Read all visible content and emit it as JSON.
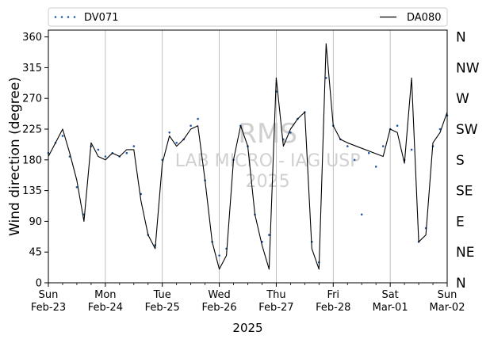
{
  "chart_data": {
    "type": "scatter",
    "ylabel": "Wind direction (degree)",
    "xlabel": "2025",
    "ylim": [
      0,
      370
    ],
    "yticks": [
      0,
      45,
      90,
      135,
      180,
      225,
      270,
      315,
      360
    ],
    "compass_labels": [
      {
        "value": 0,
        "label": "N"
      },
      {
        "value": 45,
        "label": "NE"
      },
      {
        "value": 90,
        "label": "E"
      },
      {
        "value": 135,
        "label": "SE"
      },
      {
        "value": 180,
        "label": "S"
      },
      {
        "value": 225,
        "label": "SW"
      },
      {
        "value": 270,
        "label": "W"
      },
      {
        "value": 315,
        "label": "NW"
      },
      {
        "value": 360,
        "label": "N"
      }
    ],
    "xlim_days": [
      "2025-02-23",
      "2025-03-02"
    ],
    "xticks": [
      {
        "day": "Sun",
        "date": "Feb-23"
      },
      {
        "day": "Mon",
        "date": "Feb-24"
      },
      {
        "day": "Tue",
        "date": "Feb-25"
      },
      {
        "day": "Wed",
        "date": "Feb-26"
      },
      {
        "day": "Thu",
        "date": "Feb-27"
      },
      {
        "day": "Fri",
        "date": "Feb-28"
      },
      {
        "day": "Sat",
        "date": "Mar-01"
      },
      {
        "day": "Sun",
        "date": "Mar-02"
      }
    ],
    "grid": "vertical",
    "legend_position": "top, outside plot",
    "watermark": [
      "RMS",
      "LAB MICRO - IAG USP",
      "2025"
    ],
    "series": [
      {
        "name": "DV071",
        "style": "dotted-markers",
        "color": "#1f5aa6",
        "points": [
          [
            "2025-02-23T00:00",
            190
          ],
          [
            "2025-02-23T03:00",
            205
          ],
          [
            "2025-02-23T06:00",
            215
          ],
          [
            "2025-02-23T09:00",
            185
          ],
          [
            "2025-02-23T12:00",
            140
          ],
          [
            "2025-02-23T15:00",
            100
          ],
          [
            "2025-02-23T18:00",
            200
          ],
          [
            "2025-02-23T21:00",
            195
          ],
          [
            "2025-02-24T00:00",
            185
          ],
          [
            "2025-02-24T03:00",
            190
          ],
          [
            "2025-02-24T06:00",
            185
          ],
          [
            "2025-02-24T09:00",
            190
          ],
          [
            "2025-02-24T12:00",
            200
          ],
          [
            "2025-02-24T15:00",
            130
          ],
          [
            "2025-02-24T18:00",
            70
          ],
          [
            "2025-02-24T21:00",
            55
          ],
          [
            "2025-02-25T00:00",
            180
          ],
          [
            "2025-02-25T03:00",
            220
          ],
          [
            "2025-02-25T06:00",
            205
          ],
          [
            "2025-02-25T09:00",
            210
          ],
          [
            "2025-02-25T12:00",
            230
          ],
          [
            "2025-02-25T15:00",
            240
          ],
          [
            "2025-02-25T18:00",
            150
          ],
          [
            "2025-02-25T21:00",
            60
          ],
          [
            "2025-02-26T00:00",
            40
          ],
          [
            "2025-02-26T03:00",
            50
          ],
          [
            "2025-02-26T06:00",
            180
          ],
          [
            "2025-02-26T09:00",
            230
          ],
          [
            "2025-02-26T12:00",
            200
          ],
          [
            "2025-02-26T15:00",
            100
          ],
          [
            "2025-02-26T18:00",
            60
          ],
          [
            "2025-02-26T21:00",
            70
          ],
          [
            "2025-02-27T00:00",
            280
          ],
          [
            "2025-02-27T03:00",
            210
          ],
          [
            "2025-02-27T06:00",
            220
          ],
          [
            "2025-02-27T09:00",
            240
          ],
          [
            "2025-02-27T12:00",
            250
          ],
          [
            "2025-02-27T15:00",
            60
          ],
          [
            "2025-02-27T18:00",
            30
          ],
          [
            "2025-02-27T21:00",
            300
          ],
          [
            "2025-02-28T00:00",
            230
          ],
          [
            "2025-02-28T03:00",
            210
          ],
          [
            "2025-02-28T06:00",
            200
          ],
          [
            "2025-02-28T09:00",
            180
          ],
          [
            "2025-02-28T12:00",
            100
          ],
          [
            "2025-02-28T15:00",
            190
          ],
          [
            "2025-02-28T18:00",
            170
          ],
          [
            "2025-02-28T21:00",
            200
          ],
          [
            "2025-03-01T00:00",
            225
          ],
          [
            "2025-03-01T03:00",
            230
          ],
          [
            "2025-03-01T06:00",
            180
          ],
          [
            "2025-03-01T09:00",
            195
          ],
          [
            "2025-03-01T12:00",
            60
          ],
          [
            "2025-03-01T15:00",
            80
          ],
          [
            "2025-03-01T18:00",
            200
          ],
          [
            "2025-03-01T21:00",
            225
          ],
          [
            "2025-03-02T00:00",
            245
          ]
        ]
      },
      {
        "name": "DA080",
        "style": "solid-line",
        "color": "#000000",
        "points": [
          [
            "2025-02-23T00:00",
            185
          ],
          [
            "2025-02-23T03:00",
            205
          ],
          [
            "2025-02-23T06:00",
            225
          ],
          [
            "2025-02-23T09:00",
            190
          ],
          [
            "2025-02-23T12:00",
            150
          ],
          [
            "2025-02-23T15:00",
            90
          ],
          [
            "2025-02-23T18:00",
            205
          ],
          [
            "2025-02-23T21:00",
            185
          ],
          [
            "2025-02-24T00:00",
            180
          ],
          [
            "2025-02-24T03:00",
            190
          ],
          [
            "2025-02-24T06:00",
            185
          ],
          [
            "2025-02-24T09:00",
            195
          ],
          [
            "2025-02-24T12:00",
            195
          ],
          [
            "2025-02-24T15:00",
            120
          ],
          [
            "2025-02-24T18:00",
            70
          ],
          [
            "2025-02-24T21:00",
            50
          ],
          [
            "2025-02-25T00:00",
            175
          ],
          [
            "2025-02-25T03:00",
            215
          ],
          [
            "2025-02-25T06:00",
            200
          ],
          [
            "2025-02-25T09:00",
            210
          ],
          [
            "2025-02-25T12:00",
            225
          ],
          [
            "2025-02-25T15:00",
            230
          ],
          [
            "2025-02-25T18:00",
            150
          ],
          [
            "2025-02-25T21:00",
            60
          ],
          [
            "2025-02-26T00:00",
            20
          ],
          [
            "2025-02-26T03:00",
            40
          ],
          [
            "2025-02-26T06:00",
            180
          ],
          [
            "2025-02-26T09:00",
            230
          ],
          [
            "2025-02-26T12:00",
            200
          ],
          [
            "2025-02-26T15:00",
            100
          ],
          [
            "2025-02-26T18:00",
            55
          ],
          [
            "2025-02-26T21:00",
            20
          ],
          [
            "2025-02-27T00:00",
            300
          ],
          [
            "2025-02-27T03:00",
            200
          ],
          [
            "2025-02-27T06:00",
            225
          ],
          [
            "2025-02-27T09:00",
            240
          ],
          [
            "2025-02-27T12:00",
            250
          ],
          [
            "2025-02-27T15:00",
            50
          ],
          [
            "2025-02-27T18:00",
            20
          ],
          [
            "2025-02-27T21:00",
            350
          ],
          [
            "2025-02-28T00:00",
            230
          ],
          [
            "2025-02-28T03:00",
            210
          ],
          [
            "2025-02-28T06:00",
            205
          ],
          [
            "2025-02-28T21:00",
            185
          ],
          [
            "2025-03-01T00:00",
            225
          ],
          [
            "2025-03-01T03:00",
            220
          ],
          [
            "2025-03-01T06:00",
            175
          ],
          [
            "2025-03-01T09:00",
            300
          ],
          [
            "2025-03-01T12:00",
            60
          ],
          [
            "2025-03-01T15:00",
            70
          ],
          [
            "2025-03-01T18:00",
            205
          ],
          [
            "2025-03-01T21:00",
            220
          ],
          [
            "2025-03-02T00:00",
            250
          ]
        ]
      }
    ]
  }
}
